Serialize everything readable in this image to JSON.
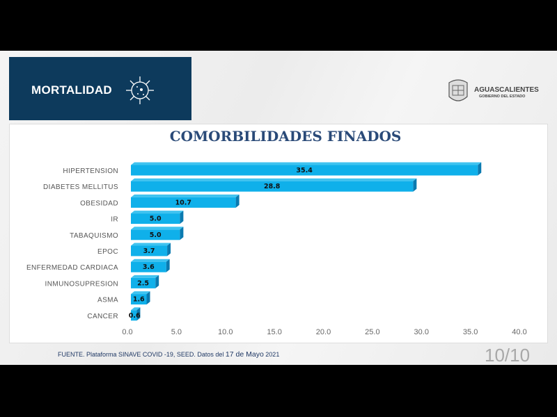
{
  "header": {
    "title": "MORTALIDAD",
    "icon": "virus-icon"
  },
  "logo": {
    "name": "AGUASCALIENTES",
    "subtitle": "GOBIERNO DEL ESTADO"
  },
  "chart_data": {
    "type": "bar",
    "orientation": "horizontal",
    "title": "COMORBILIDADES FINADOS",
    "categories": [
      "HIPERTENSION",
      "DIABETES MELLITUS",
      "OBESIDAD",
      "IR",
      "TABAQUISMO",
      "EPOC",
      "ENFERMEDAD CARDIACA",
      "INMUNOSUPRESION",
      "ASMA",
      "CANCER"
    ],
    "values": [
      35.4,
      28.8,
      10.7,
      5.0,
      5.0,
      3.7,
      3.6,
      2.5,
      1.6,
      0.6
    ],
    "data_labels": [
      "35.4",
      "28.8",
      "10.7",
      "5.0",
      "5.0",
      "3.7",
      "3.6",
      "2.5",
      "1.6",
      "0.6"
    ],
    "xlim": [
      0,
      40
    ],
    "xticks": [
      "0.0",
      "5.0",
      "10.0",
      "15.0",
      "20.0",
      "25.0",
      "30.0",
      "35.0",
      "40.0"
    ],
    "grid": false,
    "bar_color": "#0fb0ea",
    "bar_side_color": "#0a7ab0"
  },
  "footer": {
    "source_prefix": "FUENTE. Plataforma SINAVE COVID -19, SEED. Datos del ",
    "source_date": "17 de Mayo",
    "source_year": " 2021",
    "page": "10/10"
  }
}
